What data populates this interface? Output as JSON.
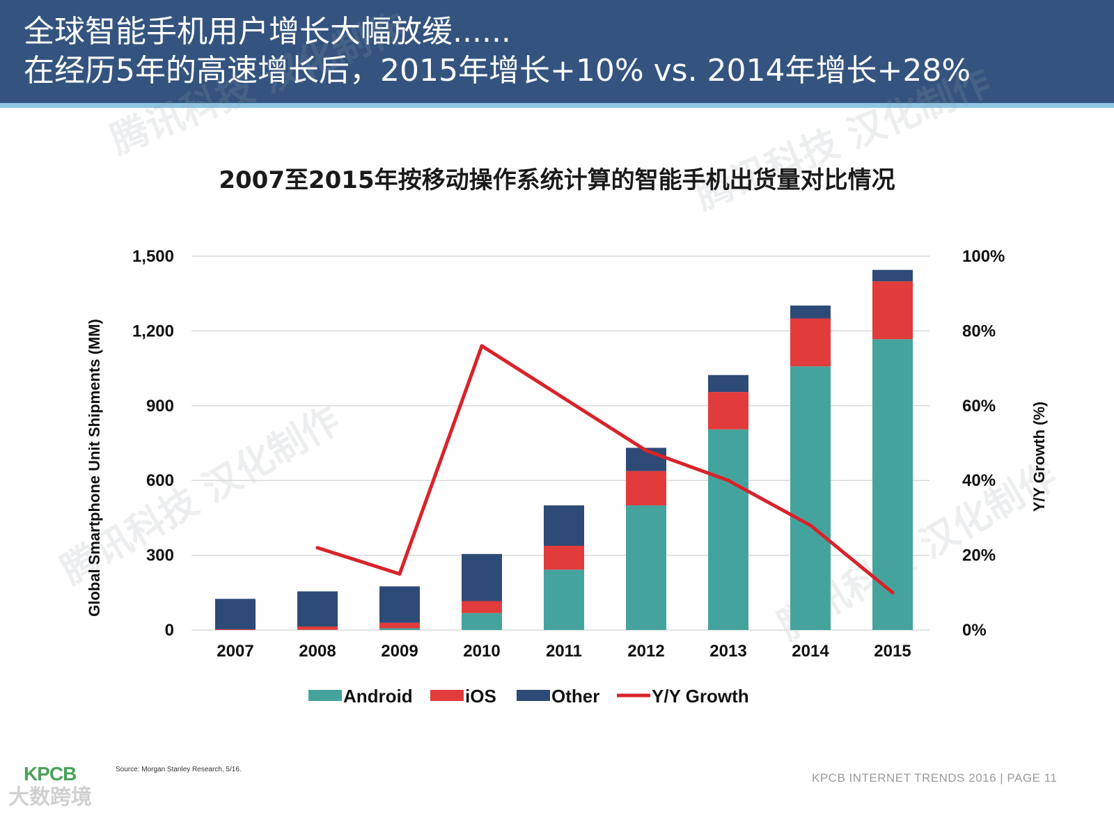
{
  "header": {
    "line1": "全球智能手机用户增长大幅放缓......",
    "line2": "在经历5年的高速增长后，2015年增长+10% vs. 2014年增长+28%"
  },
  "watermarks": [
    "腾讯科技 汉化制作",
    "腾讯科技 汉化制作",
    "腾讯科技 汉化制作",
    "腾讯科技 汉化制作"
  ],
  "chart_data": {
    "type": "bar",
    "stacked": true,
    "title": "2007至2015年按移动操作系统计算的智能手机出货量对比情况",
    "categories": [
      "2007",
      "2008",
      "2009",
      "2010",
      "2011",
      "2012",
      "2013",
      "2014",
      "2015"
    ],
    "series": [
      {
        "name": "Android",
        "color": "#45a39e",
        "values": [
          0,
          1,
          7,
          68,
          242,
          500,
          805,
          1058,
          1167
        ]
      },
      {
        "name": "iOS",
        "color": "#e23b3b",
        "values": [
          3,
          13,
          22,
          48,
          96,
          138,
          150,
          192,
          232
        ]
      },
      {
        "name": "Other",
        "color": "#2e4a76",
        "values": [
          122,
          141,
          146,
          189,
          162,
          93,
          68,
          52,
          46
        ]
      }
    ],
    "line_series": {
      "name": "Y/Y Growth",
      "color": "#d8232a",
      "axis": "right",
      "x": [
        "2008",
        "2009",
        "2010",
        "2011",
        "2012",
        "2013",
        "2014",
        "2015"
      ],
      "values": [
        22,
        15,
        76,
        62,
        48,
        40,
        28,
        10
      ]
    },
    "xlabel": "",
    "ylabel": "Global Smartphone Unit Shipments (MM)",
    "y2label": "Y/Y Growth (%)",
    "ylim": [
      0,
      1500
    ],
    "y2lim": [
      0,
      100
    ],
    "yticks": [
      "0",
      "300",
      "600",
      "900",
      "1,200",
      "1,500"
    ],
    "y2ticks": [
      "0%",
      "20%",
      "40%",
      "60%",
      "80%",
      "100%"
    ],
    "grid": true,
    "legend_position": "bottom"
  },
  "footer": {
    "source": "Source: Morgan Stanley Research, 5/16.",
    "logo": "KPCB",
    "watermark_logo": "大数跨境",
    "right": "KPCB INTERNET TRENDS 2016   |   PAGE 11"
  }
}
